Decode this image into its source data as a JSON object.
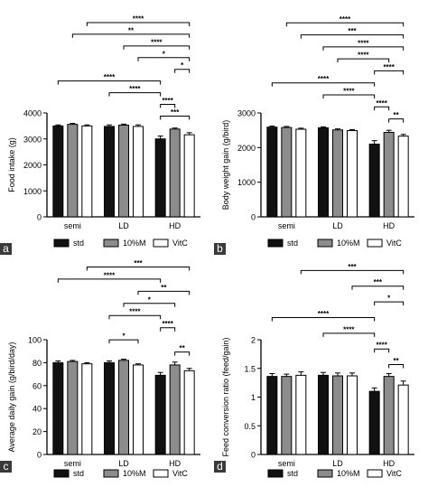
{
  "figure": {
    "legend": [
      {
        "name": "std",
        "color": "#111111"
      },
      {
        "name": "10%M",
        "color": "#8c8c8c"
      },
      {
        "name": "VitC",
        "color": "#ffffff"
      }
    ]
  },
  "chart_data": [
    {
      "panel": "a",
      "type": "bar",
      "ylabel": "Food intake (g)",
      "ylim": [
        0,
        4000
      ],
      "yticks": [
        0,
        1000,
        2000,
        3000,
        4000
      ],
      "categories": [
        "semi",
        "LD",
        "HD"
      ],
      "series": [
        {
          "name": "std",
          "values": [
            3500,
            3480,
            3000
          ],
          "errors": [
            40,
            60,
            110
          ]
        },
        {
          "name": "10%M",
          "values": [
            3560,
            3530,
            3380
          ],
          "errors": [
            40,
            40,
            40
          ]
        },
        {
          "name": "VitC",
          "values": [
            3500,
            3480,
            3160
          ],
          "errors": [
            40,
            60,
            80
          ]
        }
      ],
      "significance": [
        {
          "from": [
            2,
            0
          ],
          "to": [
            2,
            2
          ],
          "label": "***"
        },
        {
          "from": [
            2,
            0
          ],
          "to": [
            2,
            1
          ],
          "label": "****"
        },
        {
          "from": [
            1,
            0
          ],
          "to": [
            2,
            0
          ],
          "label": "****"
        },
        {
          "from": [
            0,
            0
          ],
          "to": [
            2,
            0
          ],
          "label": "****"
        },
        {
          "from": [
            2,
            1
          ],
          "to": [
            2,
            2
          ],
          "label": "*"
        },
        {
          "from": [
            1,
            2
          ],
          "to": [
            2,
            2
          ],
          "label": "*"
        },
        {
          "from": [
            1,
            1
          ],
          "to": [
            2,
            2
          ],
          "label": "****"
        },
        {
          "from": [
            0,
            1
          ],
          "to": [
            2,
            2
          ],
          "label": "**"
        },
        {
          "from": [
            0,
            2
          ],
          "to": [
            2,
            2
          ],
          "label": "****"
        }
      ]
    },
    {
      "panel": "b",
      "type": "bar",
      "ylabel": "Body weight gain (g/bird)",
      "ylim": [
        0,
        3000
      ],
      "yticks": [
        0,
        1000,
        2000,
        3000
      ],
      "categories": [
        "semi",
        "LD",
        "HD"
      ],
      "series": [
        {
          "name": "std",
          "values": [
            2590,
            2570,
            2100
          ],
          "errors": [
            30,
            30,
            100
          ]
        },
        {
          "name": "10%M",
          "values": [
            2580,
            2510,
            2440
          ],
          "errors": [
            30,
            30,
            60
          ]
        },
        {
          "name": "VitC",
          "values": [
            2530,
            2490,
            2330
          ],
          "errors": [
            30,
            30,
            50
          ]
        }
      ],
      "significance": [
        {
          "from": [
            2,
            1
          ],
          "to": [
            2,
            2
          ],
          "label": "**"
        },
        {
          "from": [
            2,
            0
          ],
          "to": [
            2,
            1
          ],
          "label": "****"
        },
        {
          "from": [
            1,
            0
          ],
          "to": [
            2,
            0
          ],
          "label": "****"
        },
        {
          "from": [
            0,
            0
          ],
          "to": [
            2,
            0
          ],
          "label": "****"
        },
        {
          "from": [
            2,
            0
          ],
          "to": [
            2,
            2
          ],
          "label": "****"
        },
        {
          "from": [
            1,
            1
          ],
          "to": [
            2,
            1
          ],
          "label": "****"
        },
        {
          "from": [
            1,
            0
          ],
          "to": [
            2,
            2
          ],
          "label": "****"
        },
        {
          "from": [
            0,
            2
          ],
          "to": [
            2,
            2
          ],
          "label": "***"
        },
        {
          "from": [
            0,
            1
          ],
          "to": [
            2,
            2
          ],
          "label": "****"
        }
      ]
    },
    {
      "panel": "c",
      "type": "bar",
      "ylabel": "Average daily gain (g/bird/day)",
      "ylim": [
        0,
        100
      ],
      "yticks": [
        0,
        20,
        40,
        60,
        80,
        100
      ],
      "categories": [
        "semi",
        "LD",
        "HD"
      ],
      "series": [
        {
          "name": "std",
          "values": [
            80,
            80,
            69
          ],
          "errors": [
            1.5,
            1.5,
            2.5
          ]
        },
        {
          "name": "10%M",
          "values": [
            81,
            82,
            78
          ],
          "errors": [
            1,
            1,
            2.5
          ]
        },
        {
          "name": "VitC",
          "values": [
            79,
            78,
            73
          ],
          "errors": [
            1,
            1,
            2
          ]
        }
      ],
      "significance": [
        {
          "from": [
            2,
            1
          ],
          "to": [
            2,
            2
          ],
          "label": "**"
        },
        {
          "from": [
            1,
            0
          ],
          "to": [
            1,
            2
          ],
          "label": "*"
        },
        {
          "from": [
            2,
            0
          ],
          "to": [
            2,
            1
          ],
          "label": "****"
        },
        {
          "from": [
            1,
            0
          ],
          "to": [
            2,
            0
          ],
          "label": "****"
        },
        {
          "from": [
            1,
            1
          ],
          "to": [
            2,
            1
          ],
          "label": "*"
        },
        {
          "from": [
            1,
            2
          ],
          "to": [
            2,
            2
          ],
          "label": "**"
        },
        {
          "from": [
            0,
            0
          ],
          "to": [
            2,
            0
          ],
          "label": "****"
        },
        {
          "from": [
            0,
            2
          ],
          "to": [
            2,
            2
          ],
          "label": "***"
        }
      ]
    },
    {
      "panel": "d",
      "type": "bar",
      "ylabel": "Feed conversion ratio (feed/gain)",
      "ylim": [
        0,
        2.0
      ],
      "yticks": [
        0.0,
        0.5,
        1.0,
        1.5,
        2.0
      ],
      "categories": [
        "semi",
        "LD",
        "HD"
      ],
      "series": [
        {
          "name": "std",
          "values": [
            1.36,
            1.38,
            1.1
          ],
          "errors": [
            0.05,
            0.05,
            0.06
          ]
        },
        {
          "name": "10%M",
          "values": [
            1.36,
            1.37,
            1.36
          ],
          "errors": [
            0.04,
            0.05,
            0.05
          ]
        },
        {
          "name": "VitC",
          "values": [
            1.38,
            1.37,
            1.21
          ],
          "errors": [
            0.06,
            0.05,
            0.07
          ]
        }
      ],
      "significance": [
        {
          "from": [
            2,
            1
          ],
          "to": [
            2,
            2
          ],
          "label": "**"
        },
        {
          "from": [
            2,
            0
          ],
          "to": [
            2,
            1
          ],
          "label": "****"
        },
        {
          "from": [
            1,
            0
          ],
          "to": [
            2,
            0
          ],
          "label": "****"
        },
        {
          "from": [
            0,
            0
          ],
          "to": [
            2,
            0
          ],
          "label": "****"
        },
        {
          "from": [
            2,
            0
          ],
          "to": [
            2,
            2
          ],
          "label": "*"
        },
        {
          "from": [
            1,
            2
          ],
          "to": [
            2,
            2
          ],
          "label": "***"
        },
        {
          "from": [
            0,
            2
          ],
          "to": [
            2,
            2
          ],
          "label": "***"
        }
      ]
    }
  ]
}
